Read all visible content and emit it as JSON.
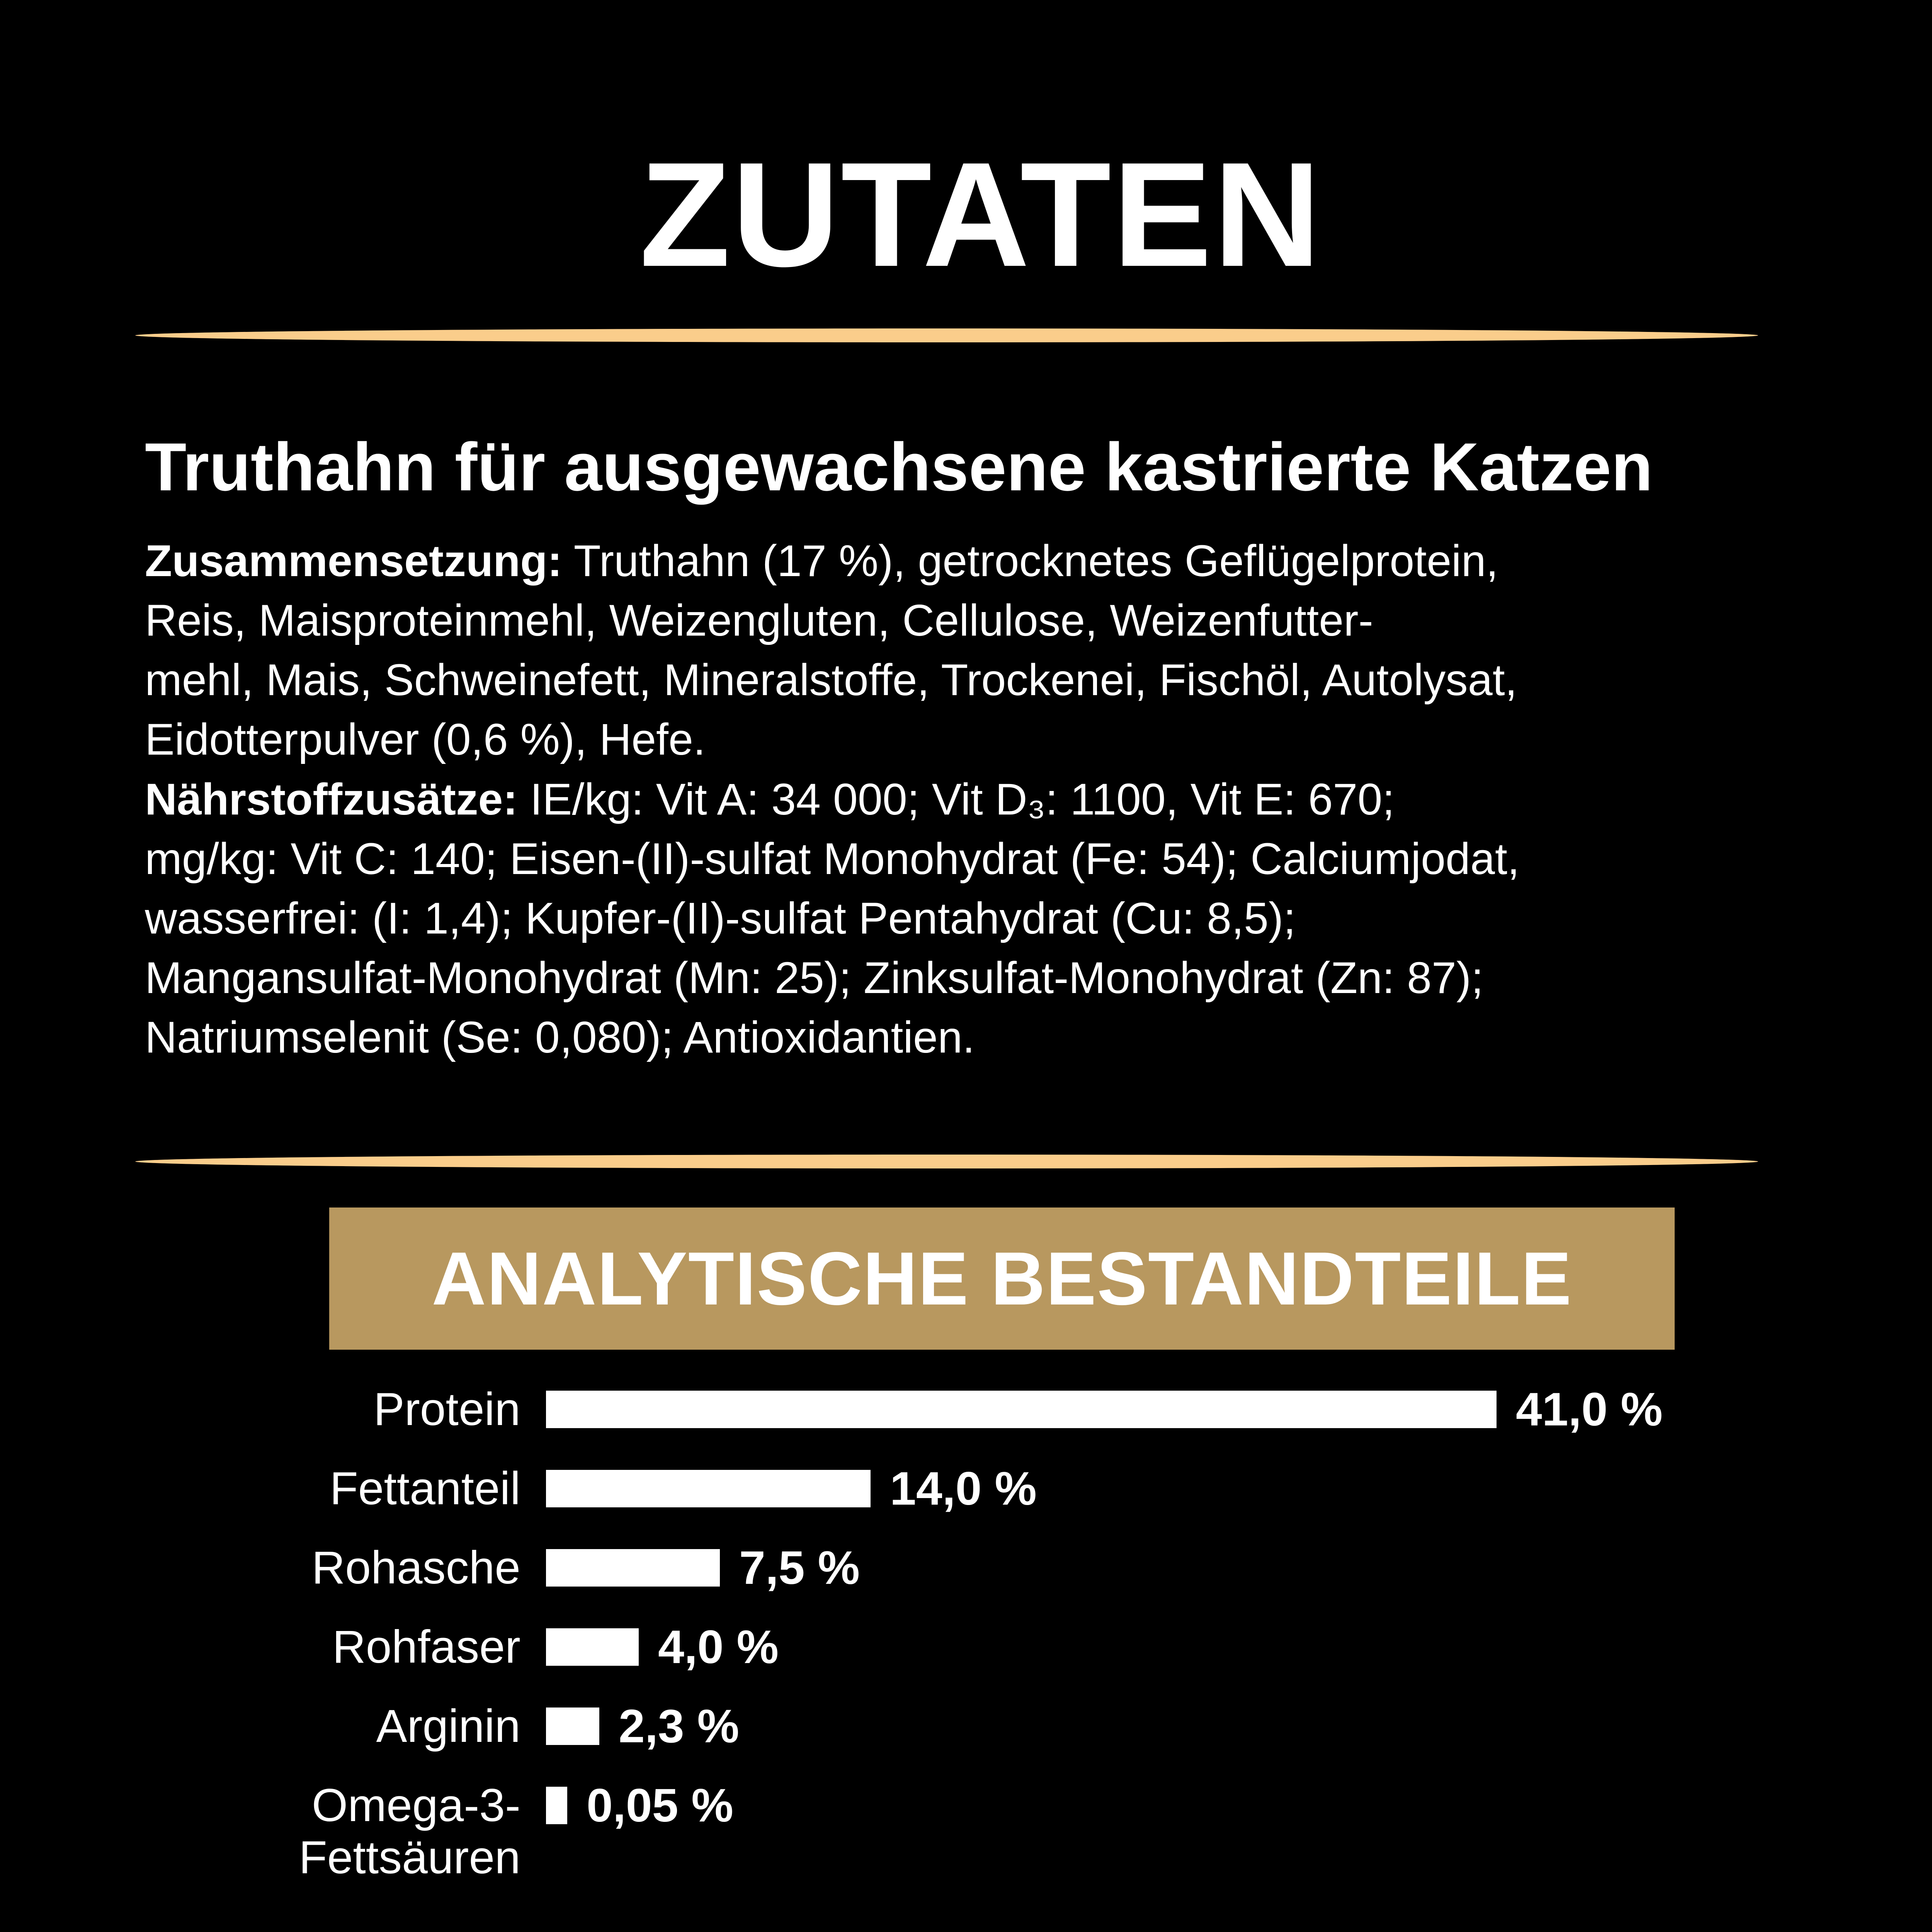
{
  "page": {
    "title": "ZUTATEN"
  },
  "colors": {
    "background": "#000000",
    "text": "#FFFFFF",
    "divider_gold": "#FACD8B",
    "banner_gold": "#B8985F",
    "bar_fill": "#FFFFFF"
  },
  "heading": "Truthahn für ausgewachsene kastrierte Katzen",
  "composition": {
    "lines": [
      {
        "bold": "Zusammensetzung:",
        "text": " Truthahn (17 %), getrocknetes Geflügelprotein,"
      },
      {
        "bold": "",
        "text": "Reis, Maisproteinmehl, Weizengluten, Cellulose, Weizenfutter-"
      },
      {
        "bold": "",
        "text": "mehl, Mais, Schweinefett, Mineralstoffe, Trockenei, Fischöl, Autolysat,"
      },
      {
        "bold": "",
        "text": "Eidotterpulver (0,6 %), Hefe."
      }
    ]
  },
  "additives": {
    "lines": [
      {
        "bold": "Nährstoffzusätze:",
        "text": " IE/kg: Vit A: 34 000; Vit D₃: 1100, Vit E: 670;"
      },
      {
        "bold": "",
        "text": "mg/kg: Vit C: 140; Eisen-(II)-sulfat Monohydrat (Fe: 54); Calciumjodat,"
      },
      {
        "bold": "",
        "text": "wasserfrei: (I: 1,4); Kupfer-(II)-sulfat Pentahydrat (Cu: 8,5);"
      },
      {
        "bold": "",
        "text": "Mangansulfat-Monohydrat (Mn: 25); Zinksulfat-Monohydrat (Zn: 87);"
      },
      {
        "bold": "",
        "text": "Natriumselenit (Se: 0,080); Antioxidantien."
      }
    ]
  },
  "chart_data": {
    "type": "bar",
    "orientation": "horizontal",
    "title": "ANALYTISCHE BESTANDTEILE",
    "unit": "%",
    "xlim": [
      0,
      41
    ],
    "grid": false,
    "legend": "none",
    "categories": [
      "Protein",
      "Fettanteil",
      "Rohasche",
      "Rohfaser",
      "Arginin",
      "Omega-3-Fettsäuren"
    ],
    "values": [
      41.0,
      14.0,
      7.5,
      4.0,
      2.3,
      0.05
    ],
    "rows": [
      {
        "label": "Protein",
        "label2": "",
        "value": 41.0,
        "display": "41,0 %"
      },
      {
        "label": "Fettanteil",
        "label2": "",
        "value": 14.0,
        "display": "14,0 %"
      },
      {
        "label": "Rohasche",
        "label2": "",
        "value": 7.5,
        "display": "7,5 %"
      },
      {
        "label": "Rohfaser",
        "label2": "",
        "value": 4.0,
        "display": "4,0 %"
      },
      {
        "label": "Arginin",
        "label2": "",
        "value": 2.3,
        "display": "2,3 %"
      },
      {
        "label": "Omega-3-",
        "label2": "Fettsäuren",
        "value": 0.05,
        "display": "0,05 %"
      }
    ]
  }
}
